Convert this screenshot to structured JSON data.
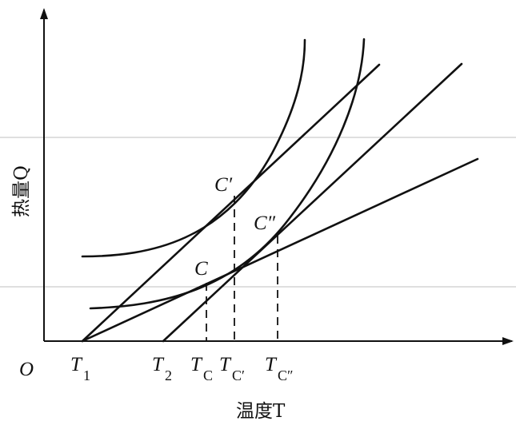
{
  "diagram": {
    "origin_label": "O",
    "y_axis_label": "热量Q",
    "x_axis_label": "温度T",
    "points": {
      "c": "C",
      "c_prime": "C′",
      "c_double_prime": "C″"
    },
    "ticks": {
      "t1_main": "T",
      "t1_sub": "1",
      "t2_main": "T",
      "t2_sub": "2",
      "tc_main": "T",
      "tc_sub": "C",
      "tc_prime_main": "T",
      "tc_prime_sub": "C′",
      "tc_double_prime_main": "T",
      "tc_double_prime_sub": "C″"
    },
    "colors": {
      "ink": "#111111",
      "guide": "#bfbfbf",
      "background": "#ffffff"
    }
  }
}
